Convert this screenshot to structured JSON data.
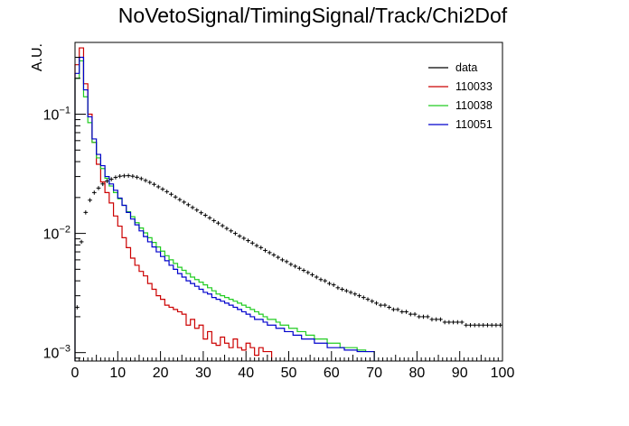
{
  "chart_data": {
    "type": "histogram",
    "title": "NoVetoSignal/TimingSignal/Track/Chi2Dof",
    "xlabel": "",
    "ylabel": "A.U.",
    "xlim": [
      0,
      100
    ],
    "ylim": [
      0.00085,
      0.4
    ],
    "yscale": "log",
    "bin_width": 1,
    "x_ticks": [
      0,
      10,
      20,
      30,
      40,
      50,
      60,
      70,
      80,
      90,
      100
    ],
    "y_ticks": [
      {
        "value": 0.001,
        "base": "10",
        "exp": "−3"
      },
      {
        "value": 0.01,
        "base": "10",
        "exp": "−2"
      },
      {
        "value": 0.1,
        "base": "10",
        "exp": "−1"
      }
    ],
    "legend_position": "top-right",
    "colors": {
      "data": "#000000",
      "110033": "#cc0000",
      "110038": "#22cc22",
      "110051": "#0000cc"
    },
    "series": [
      {
        "name": "data",
        "style": "points",
        "values": [
          0.0024,
          0.0085,
          0.015,
          0.019,
          0.022,
          0.024,
          0.026,
          0.0275,
          0.0285,
          0.0295,
          0.0302,
          0.0304,
          0.0305,
          0.0302,
          0.0296,
          0.0288,
          0.0278,
          0.0268,
          0.0258,
          0.0246,
          0.0235,
          0.0224,
          0.0213,
          0.0202,
          0.0192,
          0.0183,
          0.0174,
          0.0165,
          0.0157,
          0.0149,
          0.0142,
          0.0135,
          0.0128,
          0.0122,
          0.0116,
          0.011,
          0.0105,
          0.01,
          0.0095,
          0.0091,
          0.0087,
          0.0083,
          0.0079,
          0.0076,
          0.0072,
          0.0069,
          0.0066,
          0.0063,
          0.006,
          0.0058,
          0.0055,
          0.0053,
          0.0051,
          0.0049,
          0.0047,
          0.0045,
          0.0043,
          0.0041,
          0.004,
          0.0038,
          0.0037,
          0.0035,
          0.0034,
          0.0033,
          0.0032,
          0.0031,
          0.003,
          0.0029,
          0.0028,
          0.0027,
          0.0026,
          0.0025,
          0.0025,
          0.0024,
          0.0023,
          0.0023,
          0.0022,
          0.0022,
          0.0021,
          0.0021,
          0.002,
          0.002,
          0.002,
          0.0019,
          0.0019,
          0.0019,
          0.0018,
          0.0018,
          0.0018,
          0.0018,
          0.0018,
          0.0017,
          0.0017,
          0.0017,
          0.0017,
          0.0017,
          0.0017,
          0.0017,
          0.0017,
          0.0017
        ]
      },
      {
        "name": "110033",
        "style": "step",
        "values": [
          0.26,
          0.36,
          0.18,
          0.1,
          0.058,
          0.038,
          0.027,
          0.022,
          0.018,
          0.014,
          0.0115,
          0.0092,
          0.0076,
          0.0062,
          0.0054,
          0.0048,
          0.0044,
          0.0038,
          0.0034,
          0.003,
          0.0028,
          0.0025,
          0.0024,
          0.0023,
          0.0022,
          0.0021,
          0.0017,
          0.0019,
          0.0016,
          0.0017,
          0.0013,
          0.0015,
          0.0012,
          0.00115,
          0.00135,
          0.0012,
          0.0011,
          0.0013,
          0.0011,
          0.00105,
          0.0012,
          0.0011,
          0.00095,
          0.0011,
          0.00102,
          0.00102,
          0.0,
          0.0,
          0.0,
          0.0,
          0.0,
          0.0,
          0.0,
          0.0,
          0.0,
          0.0,
          0.0,
          0.0,
          0.0,
          0.0,
          0.0,
          0.0,
          0.0,
          0.0,
          0.0,
          0.0,
          0.0,
          0.0,
          0.0,
          0.0,
          0.0,
          0.0,
          0.0,
          0.0,
          0.0,
          0.0,
          0.0,
          0.0,
          0.0,
          0.0,
          0.0,
          0.0,
          0.0,
          0.0,
          0.0,
          0.0,
          0.0,
          0.0,
          0.0,
          0.0,
          0.0,
          0.0,
          0.0,
          0.0,
          0.0,
          0.0,
          0.0,
          0.0,
          0.0,
          0.0
        ]
      },
      {
        "name": "110038",
        "style": "step",
        "values": [
          0.2,
          0.28,
          0.14,
          0.085,
          0.058,
          0.043,
          0.035,
          0.029,
          0.025,
          0.022,
          0.0195,
          0.0172,
          0.0152,
          0.0138,
          0.0123,
          0.0111,
          0.0101,
          0.0092,
          0.0084,
          0.0077,
          0.0071,
          0.0065,
          0.006,
          0.0056,
          0.0052,
          0.0049,
          0.0046,
          0.0043,
          0.0041,
          0.0039,
          0.0037,
          0.0035,
          0.0033,
          0.0031,
          0.003,
          0.0029,
          0.0028,
          0.0027,
          0.0026,
          0.0025,
          0.0024,
          0.0023,
          0.0022,
          0.0021,
          0.002,
          0.0019,
          0.0019,
          0.0018,
          0.0017,
          0.0017,
          0.0016,
          0.0016,
          0.0015,
          0.0015,
          0.0014,
          0.0014,
          0.0013,
          0.0013,
          0.0013,
          0.0012,
          0.0012,
          0.0012,
          0.0011,
          0.0011,
          0.0011,
          0.0011,
          0.00105,
          0.00105,
          0.00102,
          0.00102,
          0.0,
          0.0,
          0.0,
          0.0,
          0.0,
          0.0,
          0.0,
          0.0,
          0.0,
          0.0,
          0.0,
          0.0,
          0.0,
          0.0,
          0.0,
          0.0,
          0.0,
          0.0,
          0.0,
          0.0,
          0.0,
          0.0,
          0.0,
          0.0,
          0.0,
          0.0,
          0.0,
          0.0,
          0.0,
          0.0
        ]
      },
      {
        "name": "110051",
        "style": "step",
        "values": [
          0.22,
          0.3,
          0.16,
          0.095,
          0.062,
          0.046,
          0.037,
          0.03,
          0.026,
          0.023,
          0.0198,
          0.0172,
          0.015,
          0.0132,
          0.0118,
          0.0105,
          0.0094,
          0.0085,
          0.0077,
          0.007,
          0.0064,
          0.0059,
          0.0054,
          0.005,
          0.0046,
          0.0043,
          0.004,
          0.0038,
          0.0036,
          0.0034,
          0.0032,
          0.0031,
          0.0029,
          0.0028,
          0.0027,
          0.0026,
          0.0025,
          0.0024,
          0.0023,
          0.0022,
          0.0021,
          0.002,
          0.0019,
          0.0019,
          0.0018,
          0.0017,
          0.0017,
          0.0016,
          0.0016,
          0.0015,
          0.0015,
          0.0014,
          0.0014,
          0.0013,
          0.0013,
          0.0013,
          0.0012,
          0.0012,
          0.0012,
          0.0011,
          0.0011,
          0.0011,
          0.0011,
          0.00105,
          0.00105,
          0.00105,
          0.00102,
          0.00102,
          0.00102,
          0.00102,
          0.0,
          0.0,
          0.0,
          0.0,
          0.0,
          0.0,
          0.0,
          0.0,
          0.0,
          0.0,
          0.0,
          0.0,
          0.0,
          0.0,
          0.0,
          0.0,
          0.0,
          0.0,
          0.0,
          0.0,
          0.0,
          0.0,
          0.0,
          0.0,
          0.0,
          0.0,
          0.0,
          0.0,
          0.0,
          0.0
        ]
      }
    ]
  }
}
